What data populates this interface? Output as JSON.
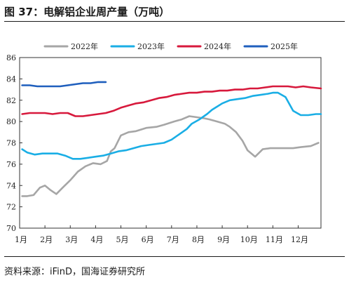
{
  "figure": {
    "title": "图 37：电解铝企业周产量（万吨）",
    "source": "资料来源：iFinD，国海证券研究所"
  },
  "chart_data": {
    "type": "line",
    "title": "",
    "xlabel": "",
    "ylabel": "",
    "x_ticks": [
      "1月",
      "2月",
      "3月",
      "4月",
      "5月",
      "6月",
      "7月",
      "8月",
      "9月",
      "10月",
      "11月",
      "12月"
    ],
    "xlim": [
      1,
      12.9
    ],
    "ylim": [
      70,
      86
    ],
    "y_ticks": [
      70,
      72,
      74,
      76,
      78,
      80,
      82,
      84,
      86
    ],
    "grid": false,
    "legend_position": "top",
    "series": [
      {
        "name": "2022年",
        "color": "#a6a6a6",
        "x": [
          1.1,
          1.3,
          1.55,
          1.8,
          2.0,
          2.2,
          2.45,
          2.7,
          3.0,
          3.3,
          3.6,
          3.9,
          4.2,
          4.45,
          4.6,
          4.75,
          5.0,
          5.3,
          5.6,
          6.0,
          6.4,
          6.7,
          7.1,
          7.4,
          7.7,
          8.0,
          8.3,
          8.5,
          8.8,
          9.1,
          9.3,
          9.55,
          9.8,
          10.0,
          10.3,
          10.6,
          10.9,
          11.2,
          11.5,
          11.8,
          12.1,
          12.5,
          12.8
        ],
        "y": [
          73.0,
          73.0,
          73.1,
          73.8,
          74.0,
          73.6,
          73.2,
          73.8,
          74.5,
          75.3,
          75.8,
          76.1,
          76.0,
          76.3,
          77.2,
          77.5,
          78.7,
          79.0,
          79.1,
          79.4,
          79.5,
          79.7,
          80.0,
          80.2,
          80.5,
          80.4,
          80.3,
          80.2,
          80.0,
          79.8,
          79.5,
          79.0,
          78.2,
          77.3,
          76.7,
          77.4,
          77.5,
          77.5,
          77.5,
          77.5,
          77.6,
          77.7,
          78.0
        ]
      },
      {
        "name": "2023年",
        "color": "#1aaee5",
        "x": [
          1.1,
          1.3,
          1.6,
          1.9,
          2.2,
          2.5,
          2.8,
          3.1,
          3.4,
          3.7,
          4.0,
          4.3,
          4.6,
          4.9,
          5.2,
          5.5,
          5.8,
          6.1,
          6.4,
          6.7,
          7.0,
          7.3,
          7.6,
          7.8,
          8.1,
          8.4,
          8.6,
          8.8,
          9.0,
          9.3,
          9.6,
          9.9,
          10.2,
          10.5,
          10.8,
          11.0,
          11.2,
          11.5,
          11.8,
          12.1,
          12.4,
          12.7,
          12.9
        ],
        "y": [
          77.4,
          77.1,
          76.9,
          77.0,
          77.0,
          77.0,
          76.8,
          76.5,
          76.5,
          76.6,
          76.7,
          76.8,
          77.0,
          77.2,
          77.3,
          77.5,
          77.7,
          77.8,
          77.9,
          78.0,
          78.3,
          78.8,
          79.3,
          79.8,
          80.2,
          80.7,
          81.1,
          81.4,
          81.7,
          82.0,
          82.1,
          82.2,
          82.4,
          82.5,
          82.6,
          82.7,
          82.7,
          82.3,
          81.0,
          80.6,
          80.6,
          80.7,
          80.7
        ]
      },
      {
        "name": "2024年",
        "color": "#d7193c",
        "x": [
          1.1,
          1.4,
          1.7,
          2.0,
          2.3,
          2.6,
          2.9,
          3.2,
          3.5,
          3.8,
          4.1,
          4.4,
          4.7,
          5.0,
          5.3,
          5.6,
          5.9,
          6.2,
          6.5,
          6.8,
          7.1,
          7.4,
          7.7,
          8.0,
          8.3,
          8.6,
          8.9,
          9.2,
          9.5,
          9.8,
          10.1,
          10.4,
          10.7,
          11.0,
          11.3,
          11.6,
          11.9,
          12.2,
          12.5,
          12.9
        ],
        "y": [
          80.7,
          80.8,
          80.8,
          80.8,
          80.7,
          80.8,
          80.8,
          80.5,
          80.5,
          80.6,
          80.7,
          80.8,
          81.0,
          81.3,
          81.5,
          81.7,
          81.8,
          82.0,
          82.2,
          82.3,
          82.5,
          82.6,
          82.7,
          82.7,
          82.8,
          82.8,
          82.9,
          82.9,
          83.0,
          83.0,
          83.1,
          83.1,
          83.2,
          83.3,
          83.3,
          83.3,
          83.2,
          83.3,
          83.2,
          83.1
        ]
      },
      {
        "name": "2025年",
        "color": "#1f5fbd",
        "x": [
          1.1,
          1.4,
          1.7,
          2.0,
          2.3,
          2.6,
          2.9,
          3.2,
          3.5,
          3.8,
          4.1,
          4.4
        ],
        "y": [
          83.4,
          83.4,
          83.3,
          83.3,
          83.3,
          83.3,
          83.4,
          83.5,
          83.6,
          83.6,
          83.7,
          83.7
        ]
      }
    ]
  }
}
